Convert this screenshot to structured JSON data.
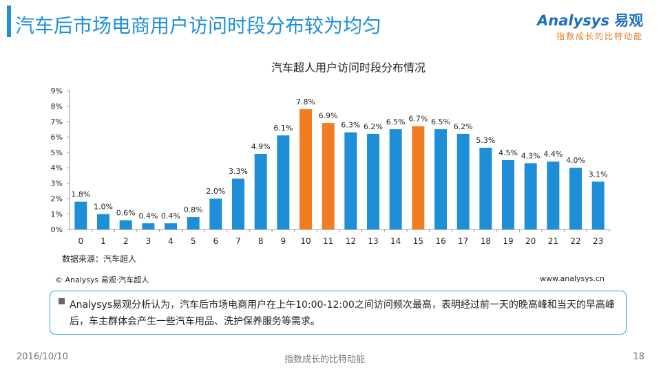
{
  "header": {
    "title": "汽车后市场电商用户访问时段分布较为均匀"
  },
  "logo": {
    "brand_en": "Analysys",
    "brand_cn": "易观",
    "slogan": "指数成长的比特动能"
  },
  "colors": {
    "accent": "#1e8fd6",
    "bar_default": "#1e8fd6",
    "bar_highlight": "#f07d22"
  },
  "chart_data": {
    "type": "bar",
    "title": "汽车超人用户访问时段分布情况",
    "categories": [
      "0",
      "1",
      "2",
      "3",
      "4",
      "5",
      "6",
      "7",
      "8",
      "9",
      "10",
      "11",
      "12",
      "13",
      "14",
      "15",
      "16",
      "17",
      "18",
      "19",
      "20",
      "21",
      "22",
      "23"
    ],
    "values": [
      1.8,
      1.0,
      0.6,
      0.4,
      0.4,
      0.8,
      2.0,
      3.3,
      4.9,
      6.1,
      7.8,
      6.9,
      6.3,
      6.2,
      6.5,
      6.7,
      6.5,
      6.2,
      5.3,
      4.5,
      4.3,
      4.4,
      4.0,
      3.1
    ],
    "value_labels": [
      "1.8%",
      "1.0%",
      "0.6%",
      "0.4%",
      "0.4%",
      "0.8%",
      "2.0%",
      "3.3%",
      "4.9%",
      "6.1%",
      "7.8%",
      "6.9%",
      "6.3%",
      "6.2%",
      "6.5%",
      "6.7%",
      "6.5%",
      "6.2%",
      "5.3%",
      "4.5%",
      "4.3%",
      "4.4%",
      "4.0%",
      "3.1%"
    ],
    "highlight_categories": [
      "10",
      "11",
      "15"
    ],
    "yticks": [
      0,
      1,
      2,
      3,
      4,
      5,
      6,
      7,
      8,
      9
    ],
    "ytick_labels": [
      "0%",
      "1%",
      "2%",
      "3%",
      "4%",
      "5%",
      "6%",
      "7%",
      "8%",
      "9%"
    ],
    "ylim": [
      0,
      9
    ],
    "xlabel": "",
    "ylabel": "",
    "grid": false
  },
  "source": "数据来源：汽车超人",
  "copyright": "© Analysys 易观·汽车超人",
  "website": "www.analysys.cn",
  "note": "Analysys易观分析认为，汽车后市场电商用户在上午10:00-12:00之间访问频次最高，表明经过前一天的晚高峰和当天的早高峰后，车主群体会产生一些汽车用品、洗护保养服务等需求。",
  "footer": {
    "date": "2016/10/10",
    "slogan": "指数成长的比特动能",
    "page": "18"
  }
}
